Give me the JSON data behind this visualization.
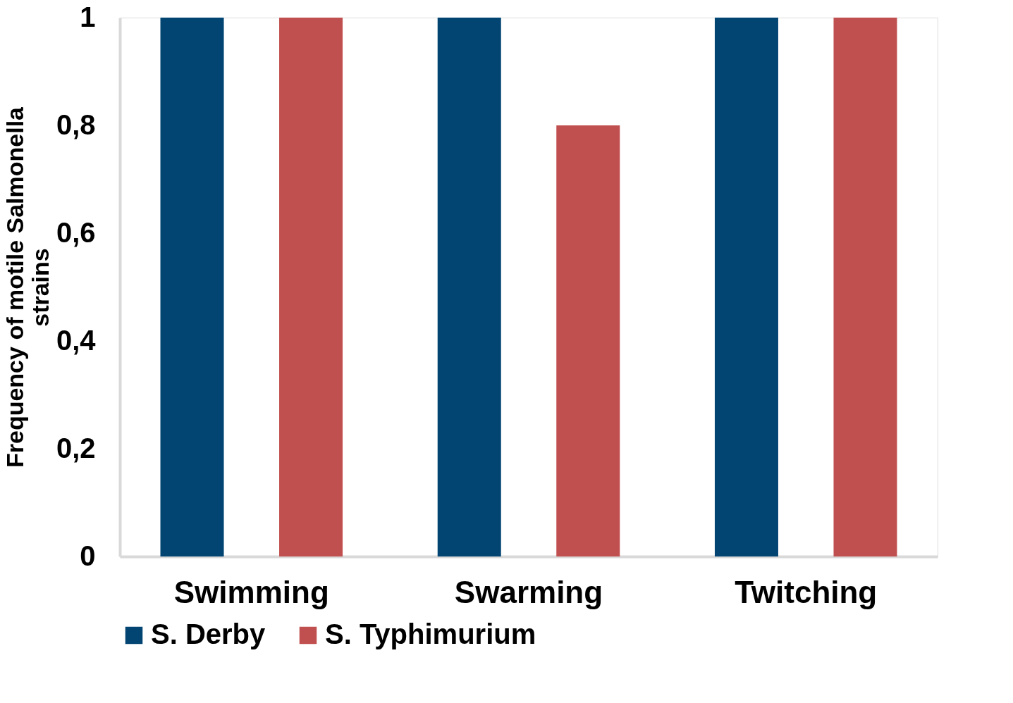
{
  "chart_data": {
    "type": "bar",
    "ylabel": "Frequency of motile Salmonella strains",
    "categories": [
      "Swimming",
      "Swarming",
      "Twitching"
    ],
    "series": [
      {
        "name": "S. Derby",
        "color": "#024472",
        "values": [
          1,
          1,
          1
        ]
      },
      {
        "name": "S. Typhimurium",
        "color": "#c0504f",
        "values": [
          1,
          0.8,
          1
        ]
      }
    ],
    "ylim": [
      0,
      1
    ],
    "yticks": [
      0,
      {
        "value": 0.2,
        "label": "0,2"
      },
      {
        "value": 0.4,
        "label": "0,4"
      },
      {
        "value": 0.6,
        "label": "0,6"
      },
      {
        "value": 0.8,
        "label": "0,8"
      },
      1
    ],
    "grid": false,
    "legend": "bottom"
  }
}
